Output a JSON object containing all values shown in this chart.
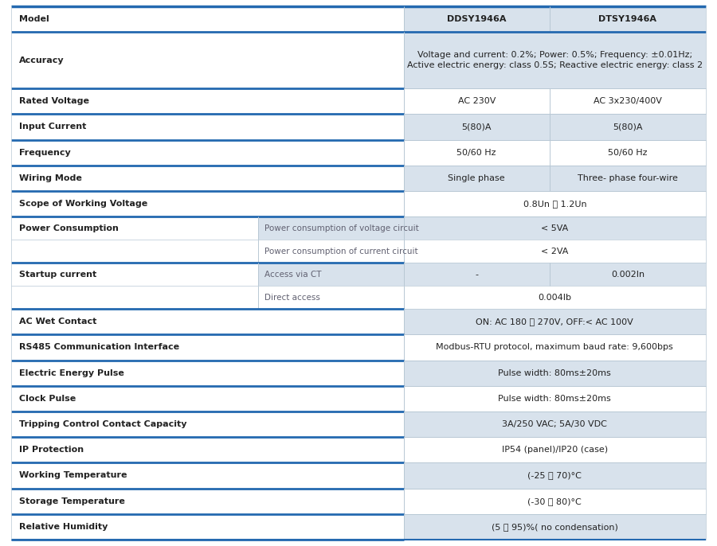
{
  "bg_color": "#ffffff",
  "header_line_color": "#2469b0",
  "thin_line_color": "#b8c8d4",
  "shaded_color": "#d8e2ec",
  "text_color_dark": "#222222",
  "text_color_mid": "#606070",
  "rows": [
    {
      "type": "header",
      "label": "Model",
      "col1": "DDSY1946A",
      "col2": "DTSY1946A",
      "shaded_right": true
    },
    {
      "type": "span",
      "label": "Accuracy",
      "value": "Voltage and current: 0.2%; Power: 0.5%; Frequency: ±0.01Hz;\nActive electric energy: class 0.5S; Reactive electric energy: class 2",
      "shaded_right": true,
      "tall": true
    },
    {
      "type": "two_col",
      "label": "Rated Voltage",
      "col1": "AC 230V",
      "col2": "AC 3x230/400V",
      "shaded_right": false
    },
    {
      "type": "two_col",
      "label": "Input Current",
      "col1": "5(80)A",
      "col2": "5(80)A",
      "shaded_right": true
    },
    {
      "type": "two_col",
      "label": "Frequency",
      "col1": "50/60 Hz",
      "col2": "50/60 Hz",
      "shaded_right": false
    },
    {
      "type": "two_col",
      "label": "Wiring Mode",
      "col1": "Single phase",
      "col2": "Three- phase four-wire",
      "shaded_right": true
    },
    {
      "type": "span",
      "label": "Scope of Working Voltage",
      "value": "0.8Un ～ 1.2Un",
      "shaded_right": false,
      "tall": false
    },
    {
      "type": "sub_first",
      "label": "Power Consumption",
      "sub": "Power consumption of voltage circuit",
      "value": "< 5VA",
      "shaded_right": true
    },
    {
      "type": "sub_cont",
      "label": "",
      "sub": "Power consumption of current circuit",
      "value": "< 2VA",
      "shaded_right": false
    },
    {
      "type": "sub_first_twocol",
      "label": "Startup current",
      "sub": "Access via CT",
      "col1": "-",
      "col2": "0.002In",
      "shaded_right": true
    },
    {
      "type": "sub_cont",
      "label": "",
      "sub": "Direct access",
      "value": "0.004Ib",
      "shaded_right": false
    },
    {
      "type": "span",
      "label": "AC Wet Contact",
      "value": "ON: AC 180 ～ 270V, OFF:< AC 100V",
      "shaded_right": true,
      "tall": false
    },
    {
      "type": "span",
      "label": "RS485 Communication Interface",
      "value": "Modbus-RTU protocol, maximum baud rate: 9,600bps",
      "shaded_right": false,
      "tall": false
    },
    {
      "type": "span",
      "label": "Electric Energy Pulse",
      "value": "Pulse width: 80ms±20ms",
      "shaded_right": true,
      "tall": false
    },
    {
      "type": "span",
      "label": "Clock Pulse",
      "value": "Pulse width: 80ms±20ms",
      "shaded_right": false,
      "tall": false
    },
    {
      "type": "span",
      "label": "Tripping Control Contact Capacity",
      "value": "3A/250 VAC; 5A/30 VDC",
      "shaded_right": true,
      "tall": false
    },
    {
      "type": "span",
      "label": "IP Protection",
      "value": "IP54 (panel)/IP20 (case)",
      "shaded_right": false,
      "tall": false
    },
    {
      "type": "span",
      "label": "Working Temperature",
      "value": "(-25 ～ 70)°C",
      "shaded_right": true,
      "tall": false
    },
    {
      "type": "span",
      "label": "Storage Temperature",
      "value": "(-30 ～ 80)°C",
      "shaded_right": false,
      "tall": false
    },
    {
      "type": "span",
      "label": "Relative Humidity",
      "value": "(5 ～ 95)%( no condensation)",
      "shaded_right": true,
      "tall": false
    }
  ]
}
